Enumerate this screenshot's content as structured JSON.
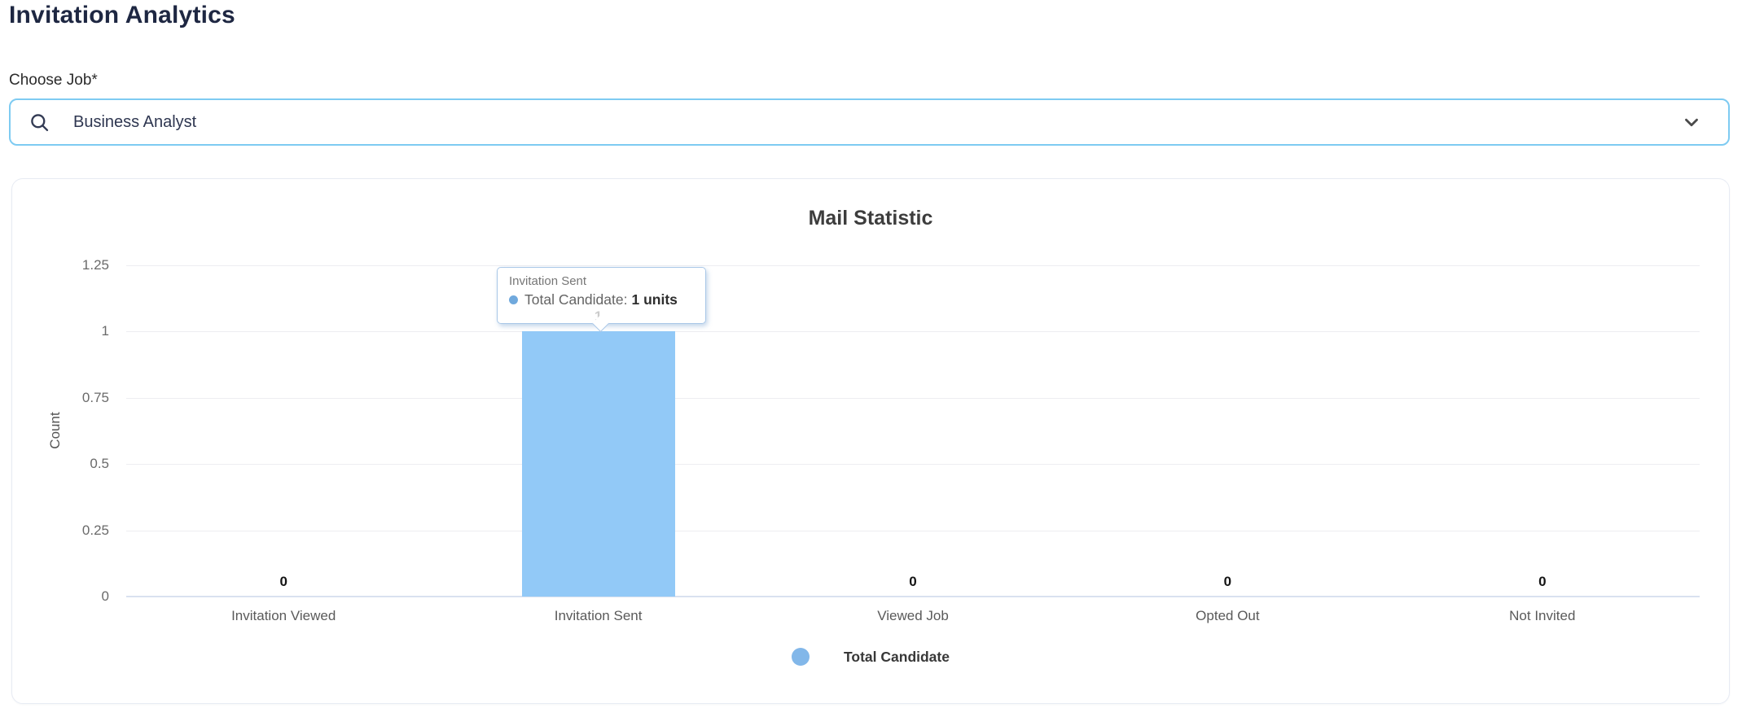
{
  "header": {
    "title": "Invitation Analytics"
  },
  "job_select": {
    "label": "Choose Job*",
    "value": "Business Analyst",
    "search_icon": "magnifier",
    "chevron_icon": "chevron-down"
  },
  "chart_data": {
    "type": "bar",
    "title": "Mail Statistic",
    "categories": [
      "Invitation Viewed",
      "Invitation Sent",
      "Viewed Job",
      "Opted Out",
      "Not Invited"
    ],
    "series": [
      {
        "name": "Total Candidate",
        "values": [
          0,
          1,
          0,
          0,
          0
        ]
      }
    ],
    "xlabel": "",
    "ylabel": "Count",
    "ylim": [
      0,
      1.25
    ],
    "yticks": [
      0,
      0.25,
      0.5,
      0.75,
      1,
      1.25
    ],
    "grid": true,
    "legend_position": "bottom",
    "bar_color": "#92c9f7",
    "legend_dot_color": "#82b7e9",
    "value_labels_shown": true
  },
  "tooltip": {
    "title": "Invitation Sent",
    "label": "Total Candidate:",
    "value": "1 units"
  },
  "legend": {
    "label": "Total Candidate"
  }
}
